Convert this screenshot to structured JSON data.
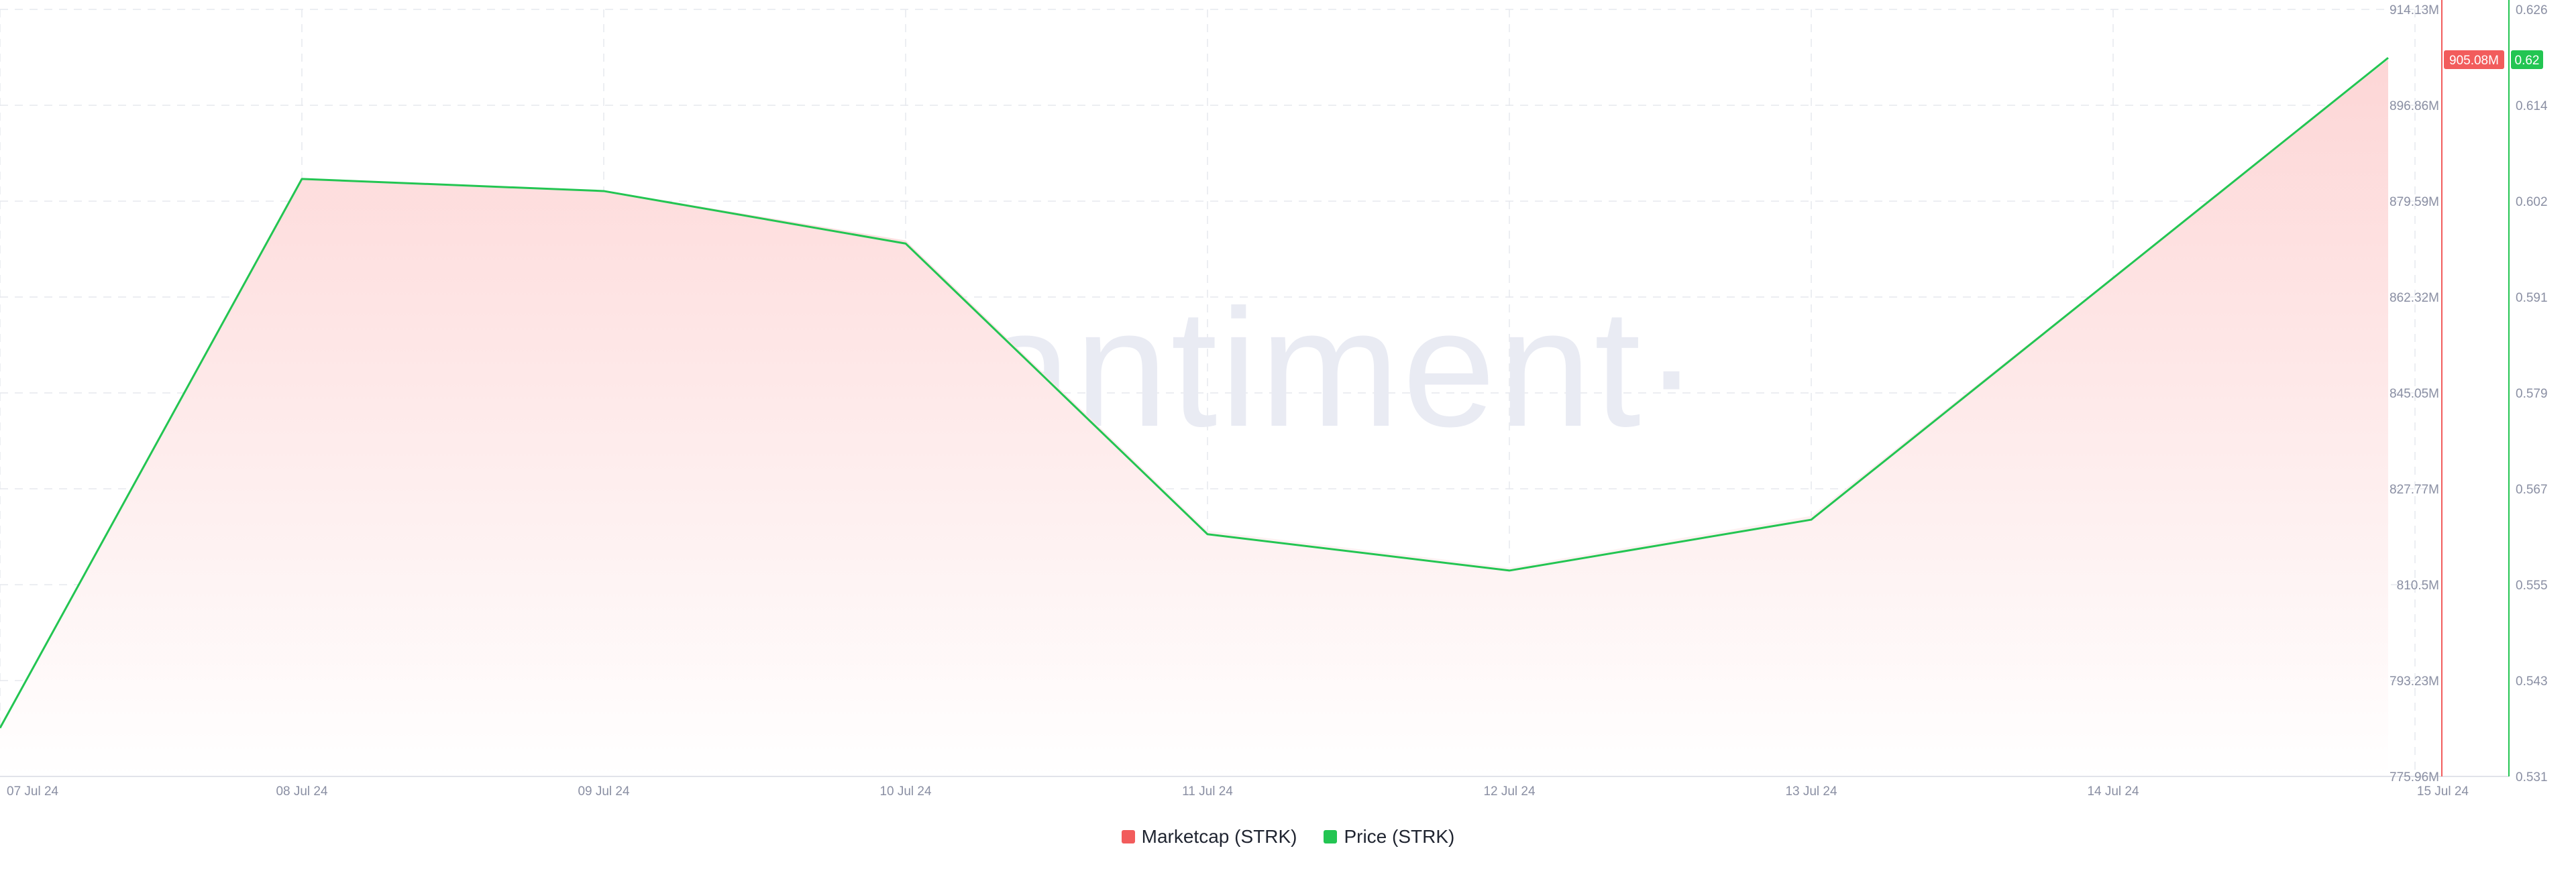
{
  "watermark": "·santiment·",
  "colors": {
    "marketcap": "#f25c5c",
    "price": "#23c552",
    "fill_top": "#fdd6d6",
    "fill_bottom": "#ffffff"
  },
  "badges": {
    "marketcap_value": "905.08M",
    "price_value": "0.62"
  },
  "legend": [
    {
      "label": "Marketcap (STRK)",
      "color": "#f25c5c"
    },
    {
      "label": "Price (STRK)",
      "color": "#23c552"
    }
  ],
  "chart_data": {
    "type": "line",
    "title": "",
    "categories": [
      "07 Jul 24",
      "08 Jul 24",
      "09 Jul 24",
      "10 Jul 24",
      "11 Jul 24",
      "12 Jul 24",
      "13 Jul 24",
      "14 Jul 24",
      "15 Jul 24"
    ],
    "x": [
      "07 Jul 24",
      "08 Jul 24",
      "09 Jul 24",
      "10 Jul 24",
      "11 Jul 24",
      "12 Jul 24",
      "13 Jul 24",
      "15 Jul 24"
    ],
    "series": [
      {
        "name": "Marketcap (STRK)",
        "axis": "left",
        "style": "area",
        "values_millions": [
          784.2,
          883.7,
          881.5,
          872.5,
          820.2,
          813.6,
          822.9,
          905.08
        ]
      },
      {
        "name": "Price (STRK)",
        "axis": "right",
        "style": "line",
        "values": [
          0.537,
          0.605,
          0.6035,
          0.597,
          0.561,
          0.5565,
          0.5628,
          0.62
        ]
      }
    ],
    "left_axis": {
      "ticks": [
        "914.13M",
        "896.86M",
        "879.59M",
        "862.32M",
        "845.05M",
        "827.77M",
        "810.5M",
        "793.23M",
        "775.96M"
      ],
      "ylim": [
        775.96,
        914.13
      ]
    },
    "right_axis": {
      "ticks": [
        "0.626",
        "0.614",
        "0.602",
        "0.591",
        "0.579",
        "0.567",
        "0.555",
        "0.543",
        "0.531"
      ],
      "ylim": [
        0.531,
        0.626
      ]
    },
    "grid": true,
    "legend_position": "bottom-center"
  }
}
